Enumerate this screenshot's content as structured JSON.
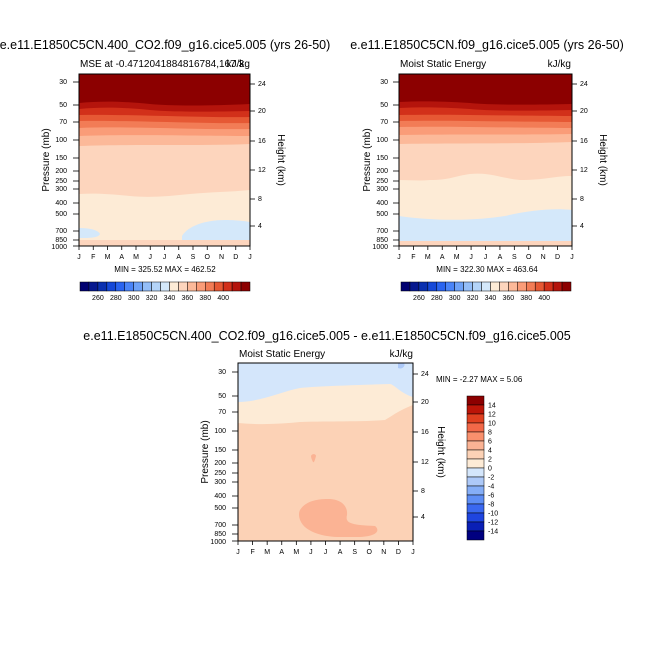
{
  "colors": {
    "levels_top": [
      "#000070",
      "#06188f",
      "#0a30b0",
      "#1548d8",
      "#2a64f0",
      "#4a84f8",
      "#6ea2f8",
      "#94bef8",
      "#b4d4f8",
      "#d4e8fa",
      "#fdebd6",
      "#fdd5bd",
      "#fcb999",
      "#fa9c78",
      "#f27c56",
      "#e65834",
      "#d2301a",
      "#b4140c",
      "#8c0000"
    ],
    "levels_diff": [
      "#000080",
      "#0a1fb5",
      "#1f45e0",
      "#3a68f0",
      "#5e8ef5",
      "#85aef7",
      "#adc9f8",
      "#d4e6fb",
      "#fdebd6",
      "#fcd2b6",
      "#fbb394",
      "#f9906d",
      "#f26848",
      "#e04020",
      "#bc1508",
      "#8c0000"
    ]
  },
  "chart_data": [
    {
      "type": "heatmap",
      "id": "panel1",
      "panel_title": "e.e11.E1850C5CN.400_CO2.f09_g16.cice5.005 (yrs 26-50)",
      "left_string": "MSE at -0.4712041884816784,167.3",
      "right_string": "kJ/kg",
      "ylabel": "Pressure (mb)",
      "ylabel_right": "Height (km)",
      "pressure_ticks": [
        "30",
        "50",
        "70",
        "100",
        "150",
        "200",
        "250",
        "300",
        "400",
        "500",
        "700",
        "850",
        "1000"
      ],
      "height_ticks": [
        "24",
        "20",
        "16",
        "12",
        "8",
        "4"
      ],
      "months": [
        "J",
        "F",
        "M",
        "A",
        "M",
        "J",
        "J",
        "A",
        "S",
        "O",
        "N",
        "D",
        "J"
      ],
      "min_max": "MIN = 325.52 MAX = 462.52",
      "min": 325.52,
      "max": 462.52,
      "colorbar_labels": [
        "260",
        "280",
        "300",
        "320",
        "340",
        "360",
        "380",
        "400"
      ]
    },
    {
      "type": "heatmap",
      "id": "panel2",
      "panel_title": "e.e11.E1850C5CN.f09_g16.cice5.005 (yrs 26-50)",
      "left_string": "Moist Static Energy",
      "right_string": "kJ/kg",
      "ylabel": "Pressure (mb)",
      "ylabel_right": "Height (km)",
      "pressure_ticks": [
        "30",
        "50",
        "70",
        "100",
        "150",
        "200",
        "250",
        "300",
        "400",
        "500",
        "700",
        "850",
        "1000"
      ],
      "height_ticks": [
        "24",
        "20",
        "16",
        "12",
        "8",
        "4"
      ],
      "months": [
        "J",
        "F",
        "M",
        "A",
        "M",
        "J",
        "J",
        "A",
        "S",
        "O",
        "N",
        "D",
        "J"
      ],
      "min_max": "MIN = 322.30 MAX = 463.64",
      "min": 322.3,
      "max": 463.64,
      "colorbar_labels": [
        "260",
        "280",
        "300",
        "320",
        "340",
        "360",
        "380",
        "400"
      ]
    },
    {
      "type": "heatmap",
      "id": "panel3",
      "panel_title": "e.e11.E1850C5CN.400_CO2.f09_g16.cice5.005 - e.e11.E1850C5CN.f09_g16.cice5.005",
      "left_string": "Moist Static Energy",
      "right_string": "kJ/kg",
      "ylabel": "Pressure (mb)",
      "ylabel_right": "Height (km)",
      "pressure_ticks": [
        "30",
        "50",
        "70",
        "100",
        "150",
        "200",
        "250",
        "300",
        "400",
        "500",
        "700",
        "850",
        "1000"
      ],
      "height_ticks": [
        "24",
        "20",
        "16",
        "12",
        "8",
        "4"
      ],
      "months": [
        "J",
        "F",
        "M",
        "A",
        "M",
        "J",
        "J",
        "A",
        "S",
        "O",
        "N",
        "D",
        "J"
      ],
      "min_max": "MIN =  -2.27 MAX =   5.06",
      "min": -2.27,
      "max": 5.06,
      "colorbar_labels": [
        "14",
        "12",
        "10",
        "8",
        "6",
        "4",
        "2",
        "0",
        "-2",
        "-4",
        "-6",
        "-8",
        "-10",
        "-12",
        "-14"
      ]
    }
  ]
}
